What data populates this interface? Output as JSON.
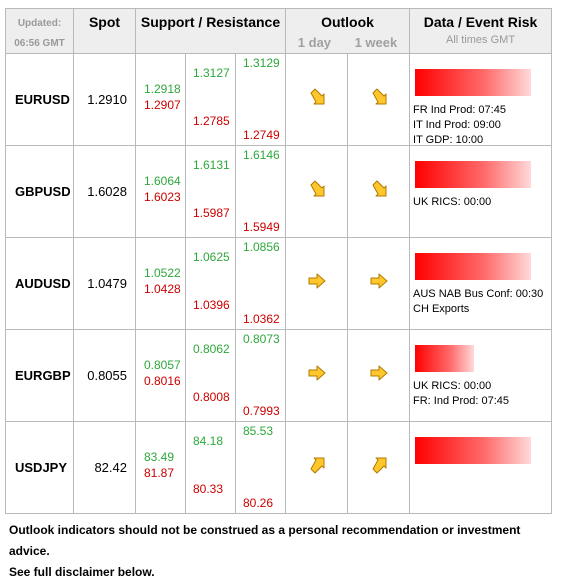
{
  "header": {
    "updated_label": "Updated:",
    "updated_time": "06:56 GMT",
    "spot": "Spot",
    "support_resistance": "Support / Resistance",
    "outlook": "Outlook",
    "outlook_1day": "1 day",
    "outlook_1week": "1 week",
    "risk": "Data / Event Risk",
    "risk_sub": "All times GMT"
  },
  "colors": {
    "support": "#2ea83b",
    "resistance": "#cc0000",
    "risk_bar": "#ff0000",
    "arrow_fill": "#ffc72c"
  },
  "rows": [
    {
      "pair": "EURUSD",
      "spot": "1.2910",
      "s1": "1.2918",
      "s2": "1.3127",
      "s3": "1.3129",
      "r1": "1.2907",
      "r2": "1.2785",
      "r3": "1.2749",
      "outlook_1day": "down-right",
      "outlook_1week": "down-right",
      "risk_level": 0.93,
      "events": [
        "FR Ind Prod: 07:45",
        "IT Ind Prod: 09:00",
        "IT GDP: 10:00"
      ]
    },
    {
      "pair": "GBPUSD",
      "spot": "1.6028",
      "s1": "1.6064",
      "s2": "1.6131",
      "s3": "1.6146",
      "r1": "1.6023",
      "r2": "1.5987",
      "r3": "1.5949",
      "outlook_1day": "down-right",
      "outlook_1week": "down-right",
      "risk_level": 0.93,
      "events": [
        "UK RICS: 00:00"
      ]
    },
    {
      "pair": "AUDUSD",
      "spot": "1.0479",
      "s1": "1.0522",
      "s2": "1.0625",
      "s3": "1.0856",
      "r1": "1.0428",
      "r2": "1.0396",
      "r3": "1.0362",
      "outlook_1day": "right",
      "outlook_1week": "right",
      "risk_level": 0.93,
      "events": [
        "AUS NAB Bus Conf: 00:30",
        "CH Exports"
      ]
    },
    {
      "pair": "EURGBP",
      "spot": "0.8055",
      "s1": "0.8057",
      "s2": "0.8062",
      "s3": "0.8073",
      "r1": "0.8016",
      "r2": "0.8008",
      "r3": "0.7993",
      "outlook_1day": "right",
      "outlook_1week": "right",
      "risk_level": 0.47,
      "events": [
        "UK RICS: 00:00",
        "FR: Ind Prod: 07:45"
      ]
    },
    {
      "pair": "USDJPY",
      "spot": "82.42",
      "s1": "83.49",
      "s2": "84.18",
      "s3": "85.53",
      "r1": "81.87",
      "r2": "80.33",
      "r3": "80.26",
      "outlook_1day": "up-right",
      "outlook_1week": "up-right",
      "risk_level": 0.93,
      "events": []
    }
  ],
  "footer": {
    "line1": "Outlook indicators should not be construed as a personal recommendation or investment advice.",
    "line2": "See full disclaimer below."
  }
}
